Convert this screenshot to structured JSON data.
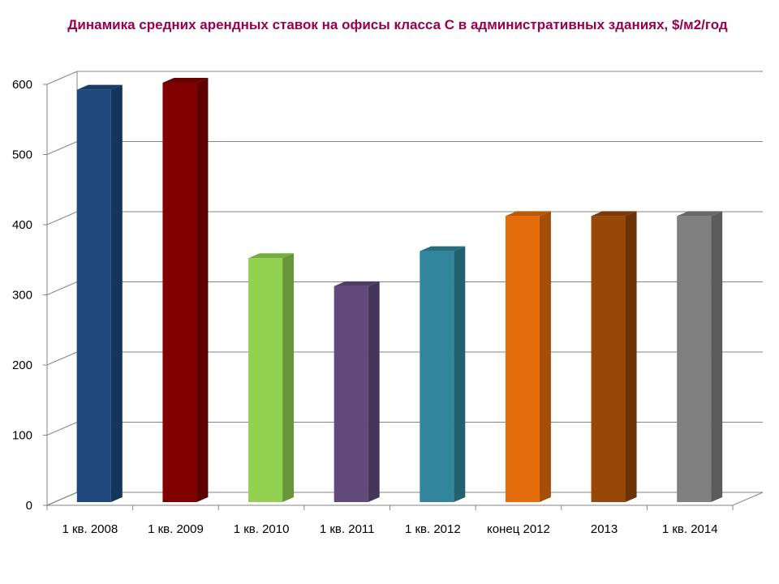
{
  "chart_data": {
    "type": "bar",
    "title": "Динамика средних арендных ставок на офисы класса С в административных зданиях, $/м2/год",
    "xlabel": "",
    "ylabel": "",
    "categories": [
      "1 кв. 2008",
      "1 кв. 2009",
      "1 кв. 2010",
      "1 кв. 2011",
      "1 кв. 2012",
      "конец 2012",
      "2013",
      "1 кв. 2014"
    ],
    "values": [
      590,
      600,
      350,
      310,
      360,
      410,
      410,
      410
    ],
    "bar_colors": [
      "#1f497d",
      "#800000",
      "#92d050",
      "#604a7b",
      "#31859c",
      "#e46c0a",
      "#974706",
      "#808080"
    ],
    "ylim": [
      0,
      600
    ],
    "yticks": [
      0,
      100,
      200,
      300,
      400,
      500,
      600
    ],
    "grid": true,
    "legend": "none",
    "style": "3d-clustered-column"
  }
}
